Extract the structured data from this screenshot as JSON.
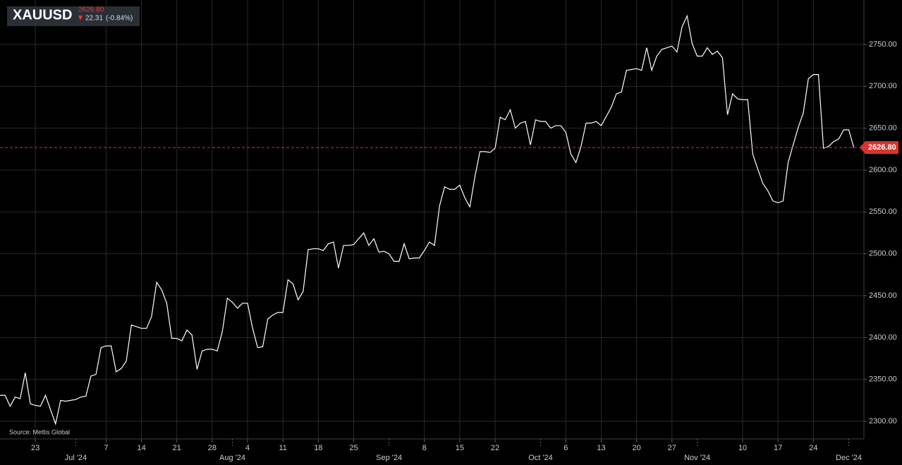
{
  "chart_data": {
    "type": "line",
    "title": "XAUUSD",
    "price_change": "22.31",
    "change_percent": "(-0.84%)",
    "source": "Source: Mettis Global",
    "color": "#ffffff",
    "last_color": "#d9342b",
    "grid": true,
    "last_price": {
      "value": 2626.8,
      "label": "2626.80"
    },
    "xlim": [
      "2024-06-16",
      "2024-12-04"
    ],
    "ylim": [
      2279,
      2803
    ],
    "yticks": [
      {
        "value": 2300,
        "label": "2300.00"
      },
      {
        "value": 2350,
        "label": "2350.00"
      },
      {
        "value": 2400,
        "label": "2400.00"
      },
      {
        "value": 2450,
        "label": "2450.00"
      },
      {
        "value": 2500,
        "label": "2500.00"
      },
      {
        "value": 2550,
        "label": "2550.00"
      },
      {
        "value": 2600,
        "label": "2600.00"
      },
      {
        "value": 2650,
        "label": "2650.00"
      },
      {
        "value": 2700,
        "label": "2700.00"
      },
      {
        "value": 2750,
        "label": "2750.00"
      }
    ],
    "xticks": [
      {
        "value": "2024-06-23",
        "label": "23"
      },
      {
        "value": "2024-07-01",
        "label": "Jul '24"
      },
      {
        "value": "2024-07-07",
        "label": "7"
      },
      {
        "value": "2024-07-14",
        "label": "14"
      },
      {
        "value": "2024-07-21",
        "label": "21"
      },
      {
        "value": "2024-07-28",
        "label": "28"
      },
      {
        "value": "2024-08-01",
        "label": "Aug '24"
      },
      {
        "value": "2024-08-04",
        "label": "4"
      },
      {
        "value": "2024-08-11",
        "label": "11"
      },
      {
        "value": "2024-08-18",
        "label": "18"
      },
      {
        "value": "2024-08-25",
        "label": "25"
      },
      {
        "value": "2024-09-01",
        "label": "Sep '24"
      },
      {
        "value": "2024-09-08",
        "label": "8"
      },
      {
        "value": "2024-09-15",
        "label": "15"
      },
      {
        "value": "2024-09-22",
        "label": "22"
      },
      {
        "value": "2024-10-01",
        "label": "Oct '24"
      },
      {
        "value": "2024-10-06",
        "label": "6"
      },
      {
        "value": "2024-10-13",
        "label": "13"
      },
      {
        "value": "2024-10-20",
        "label": "20"
      },
      {
        "value": "2024-10-27",
        "label": "27"
      },
      {
        "value": "2024-11-01",
        "label": "Nov '24"
      },
      {
        "value": "2024-11-10",
        "label": "10"
      },
      {
        "value": "2024-11-17",
        "label": "17"
      },
      {
        "value": "2024-11-24",
        "label": "24"
      },
      {
        "value": "2024-12-01",
        "label": "Dec '24"
      }
    ],
    "x": [
      "2024-06-16",
      "2024-06-17",
      "2024-06-18",
      "2024-06-19",
      "2024-06-20",
      "2024-06-21",
      "2024-06-22",
      "2024-06-23",
      "2024-06-24",
      "2024-06-25",
      "2024-06-26",
      "2024-06-27",
      "2024-06-28",
      "2024-06-29",
      "2024-06-30",
      "2024-07-01",
      "2024-07-02",
      "2024-07-03",
      "2024-07-04",
      "2024-07-05",
      "2024-07-06",
      "2024-07-07",
      "2024-07-08",
      "2024-07-09",
      "2024-07-10",
      "2024-07-11",
      "2024-07-12",
      "2024-07-13",
      "2024-07-14",
      "2024-07-15",
      "2024-07-16",
      "2024-07-17",
      "2024-07-18",
      "2024-07-19",
      "2024-07-20",
      "2024-07-21",
      "2024-07-22",
      "2024-07-23",
      "2024-07-24",
      "2024-07-25",
      "2024-07-26",
      "2024-07-27",
      "2024-07-28",
      "2024-07-29",
      "2024-07-30",
      "2024-07-31",
      "2024-08-01",
      "2024-08-02",
      "2024-08-03",
      "2024-08-04",
      "2024-08-05",
      "2024-08-06",
      "2024-08-07",
      "2024-08-08",
      "2024-08-09",
      "2024-08-10",
      "2024-08-11",
      "2024-08-12",
      "2024-08-13",
      "2024-08-14",
      "2024-08-15",
      "2024-08-16",
      "2024-08-17",
      "2024-08-18",
      "2024-08-19",
      "2024-08-20",
      "2024-08-21",
      "2024-08-22",
      "2024-08-23",
      "2024-08-24",
      "2024-08-25",
      "2024-08-26",
      "2024-08-27",
      "2024-08-28",
      "2024-08-29",
      "2024-08-30",
      "2024-08-31",
      "2024-09-01",
      "2024-09-02",
      "2024-09-03",
      "2024-09-04",
      "2024-09-05",
      "2024-09-06",
      "2024-09-07",
      "2024-09-08",
      "2024-09-09",
      "2024-09-10",
      "2024-09-11",
      "2024-09-12",
      "2024-09-13",
      "2024-09-14",
      "2024-09-15",
      "2024-09-16",
      "2024-09-17",
      "2024-09-18",
      "2024-09-19",
      "2024-09-20",
      "2024-09-21",
      "2024-09-22",
      "2024-09-23",
      "2024-09-24",
      "2024-09-25",
      "2024-09-26",
      "2024-09-27",
      "2024-09-28",
      "2024-09-29",
      "2024-09-30",
      "2024-10-01",
      "2024-10-02",
      "2024-10-03",
      "2024-10-04",
      "2024-10-05",
      "2024-10-06",
      "2024-10-07",
      "2024-10-08",
      "2024-10-09",
      "2024-10-10",
      "2024-10-11",
      "2024-10-12",
      "2024-10-13",
      "2024-10-14",
      "2024-10-15",
      "2024-10-16",
      "2024-10-17",
      "2024-10-18",
      "2024-10-19",
      "2024-10-20",
      "2024-10-21",
      "2024-10-22",
      "2024-10-23",
      "2024-10-24",
      "2024-10-25",
      "2024-10-26",
      "2024-10-27",
      "2024-10-28",
      "2024-10-29",
      "2024-10-30",
      "2024-10-31",
      "2024-11-01",
      "2024-11-02",
      "2024-11-03",
      "2024-11-04",
      "2024-11-05",
      "2024-11-06",
      "2024-11-07",
      "2024-11-08",
      "2024-11-09",
      "2024-11-10",
      "2024-11-11",
      "2024-11-12",
      "2024-11-13",
      "2024-11-14",
      "2024-11-15",
      "2024-11-16",
      "2024-11-17",
      "2024-11-18",
      "2024-11-19",
      "2024-11-20",
      "2024-11-21",
      "2024-11-22",
      "2024-11-23",
      "2024-11-24",
      "2024-11-25",
      "2024-11-26",
      "2024-11-27",
      "2024-11-28",
      "2024-11-29",
      "2024-11-30",
      "2024-12-01",
      "2024-12-02"
    ],
    "values": [
      2331,
      2331,
      2318,
      2329,
      2327,
      2358,
      2321,
      2319,
      2318,
      2331,
      2314,
      2297,
      2325,
      2324,
      2325,
      2326,
      2329,
      2330,
      2354,
      2356,
      2388,
      2390,
      2390,
      2359,
      2363,
      2372,
      2415,
      2413,
      2411,
      2411,
      2425,
      2466,
      2457,
      2441,
      2399,
      2399,
      2396,
      2409,
      2403,
      2362,
      2384,
      2386,
      2386,
      2384,
      2407,
      2447,
      2442,
      2435,
      2441,
      2441,
      2411,
      2388,
      2389,
      2422,
      2427,
      2430,
      2430,
      2469,
      2464,
      2445,
      2455,
      2505,
      2506,
      2506,
      2504,
      2512,
      2514,
      2483,
      2510,
      2510,
      2511,
      2518,
      2525,
      2510,
      2518,
      2502,
      2503,
      2500,
      2491,
      2491,
      2512,
      2494,
      2495,
      2495,
      2504,
      2514,
      2510,
      2557,
      2580,
      2577,
      2577,
      2582,
      2567,
      2556,
      2592,
      2622,
      2622,
      2621,
      2626,
      2663,
      2660,
      2672,
      2650,
      2656,
      2658,
      2630,
      2660,
      2658,
      2658,
      2650,
      2653,
      2653,
      2645,
      2619,
      2609,
      2628,
      2656,
      2656,
      2658,
      2653,
      2664,
      2675,
      2691,
      2693,
      2719,
      2720,
      2721,
      2719,
      2746,
      2719,
      2736,
      2744,
      2746,
      2748,
      2741,
      2771,
      2784,
      2751,
      2736,
      2736,
      2746,
      2738,
      2742,
      2734,
      2666,
      2691,
      2685,
      2684,
      2684,
      2619,
      2601,
      2584,
      2575,
      2563,
      2561,
      2563,
      2609,
      2630,
      2651,
      2668,
      2709,
      2714,
      2714,
      2626,
      2628,
      2634,
      2637,
      2648,
      2648,
      2626.8
    ]
  }
}
